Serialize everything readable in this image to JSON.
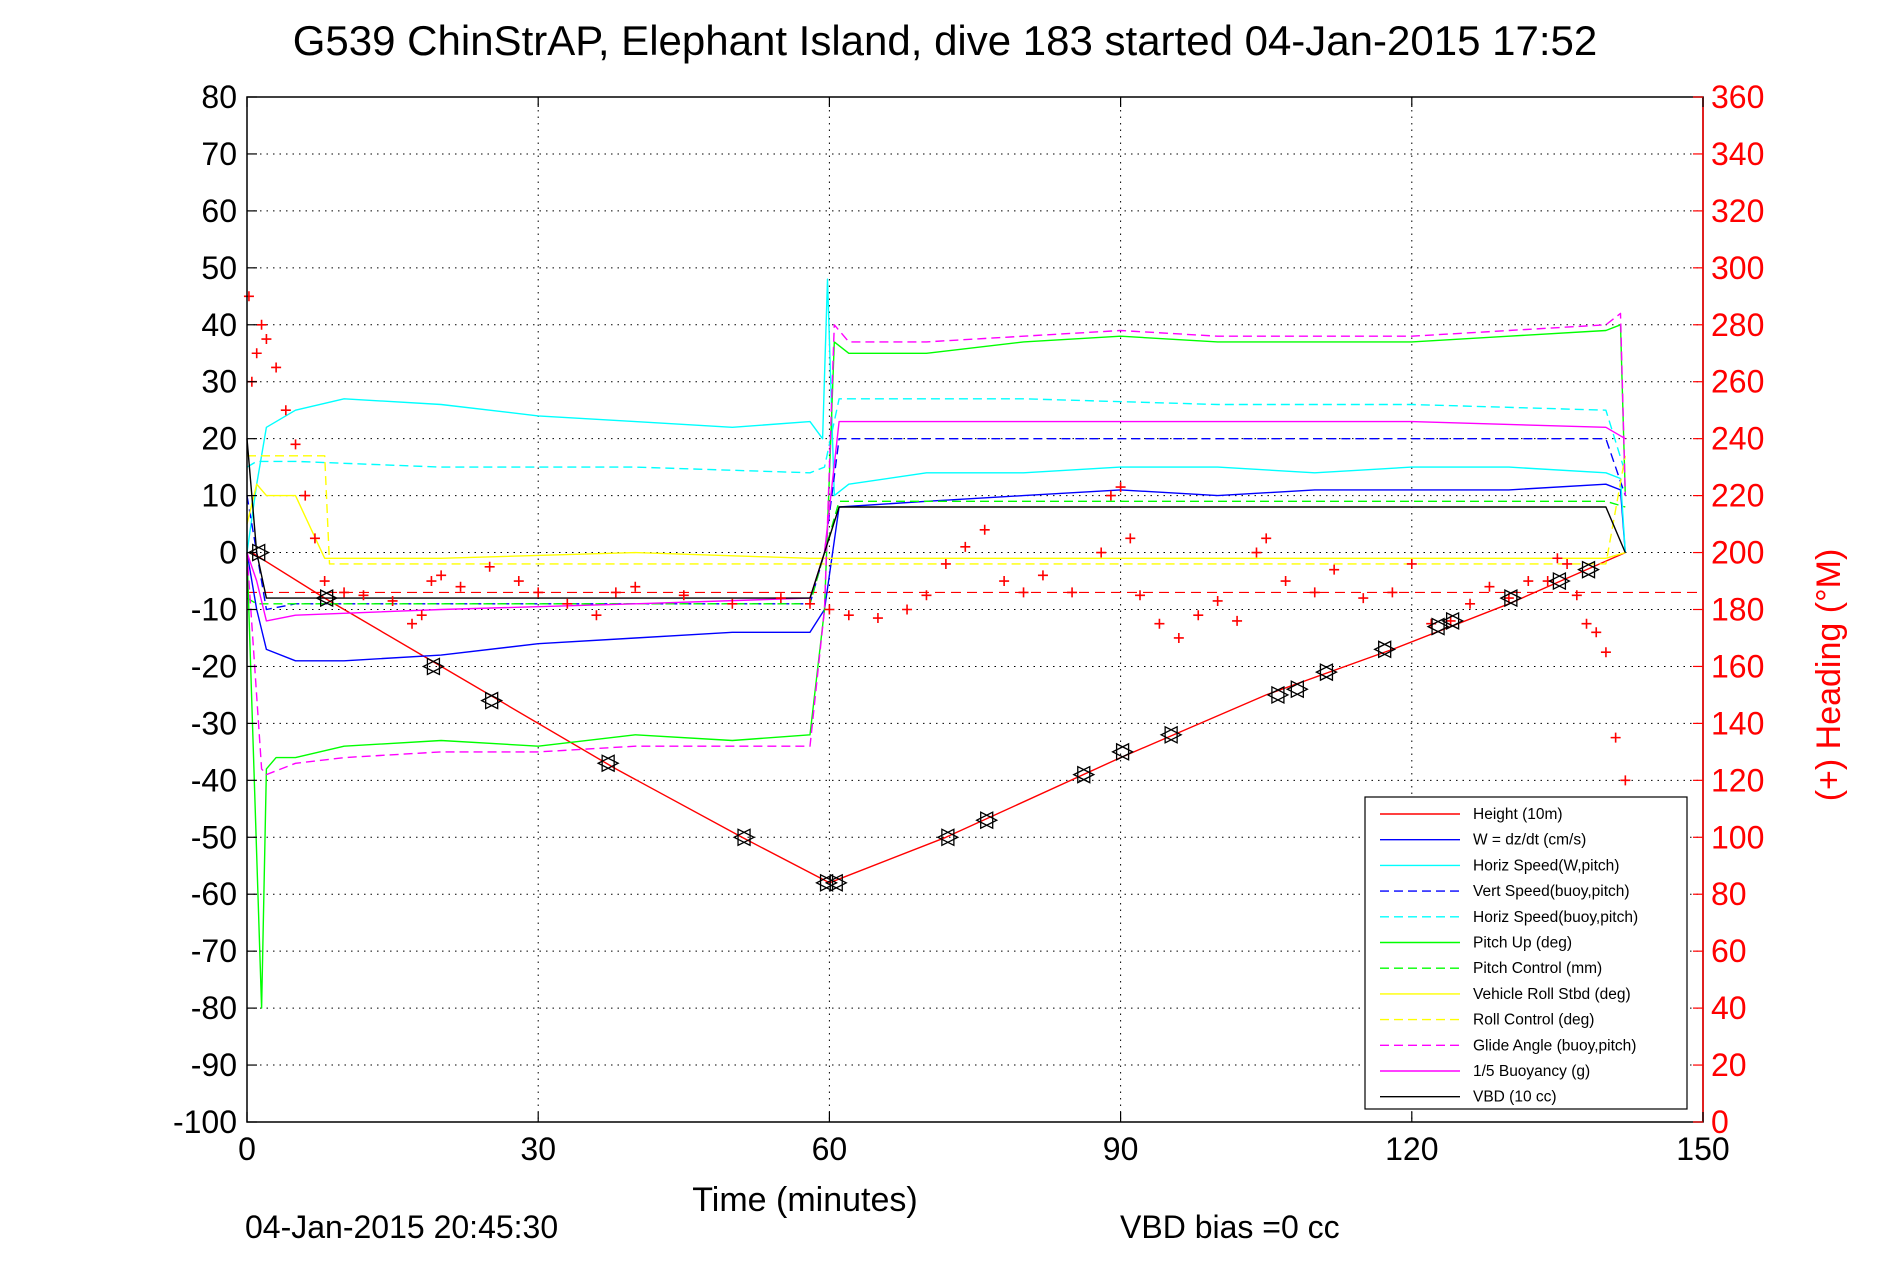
{
  "chart_data": {
    "type": "line",
    "title": "G539 ChinStrAP, Elephant Island, dive 183 started 04-Jan-2015 17:52",
    "xlabel": "Time (minutes)",
    "ylabel": "",
    "ylabel_right": "(+) Heading (°M)",
    "xlim": [
      0,
      150
    ],
    "ylim": [
      -100,
      80
    ],
    "ylim_right": [
      0,
      360
    ],
    "x_ticks": [
      "0",
      "30",
      "60",
      "90",
      "120",
      "150"
    ],
    "y_ticks": [
      "80",
      "70",
      "60",
      "50",
      "40",
      "30",
      "20",
      "10",
      "0",
      "-10",
      "-20",
      "-30",
      "-40",
      "-50",
      "-60",
      "-70",
      "-80",
      "-90",
      "-100"
    ],
    "y_ticks_right": [
      "360",
      "340",
      "320",
      "300",
      "280",
      "260",
      "240",
      "220",
      "200",
      "180",
      "160",
      "140",
      "120",
      "100",
      "80",
      "60",
      "40",
      "20",
      "0"
    ],
    "grid": true,
    "legend_position": "bottom-right",
    "colors": {
      "red": "#ff0000",
      "blue": "#0000ff",
      "cyan": "#00ffff",
      "green": "#00ff00",
      "yellow": "#ffff00",
      "magenta": "#ff00ff",
      "black": "#000000"
    },
    "series": [
      {
        "name": "Height (10m)",
        "color": "#ff0000",
        "dash": false,
        "x": [
          0.5,
          8,
          20,
          38,
          51,
          60,
          72,
          90,
          105,
          118,
          130,
          142
        ],
        "y": [
          0,
          -8,
          -20,
          -38,
          -50,
          -58,
          -50,
          -36,
          -25,
          -17,
          -9,
          0
        ]
      },
      {
        "name": "W = dz/dt (cm/s)",
        "color": "#0000ff",
        "dash": false,
        "x": [
          0,
          1,
          2,
          5,
          10,
          20,
          30,
          40,
          50,
          58,
          59.5,
          61,
          70,
          80,
          90,
          100,
          110,
          120,
          130,
          140,
          141.5,
          142
        ],
        "y": [
          0,
          -10,
          -17,
          -19,
          -19,
          -18,
          -16,
          -15,
          -14,
          -14,
          -10,
          8,
          9,
          10,
          11,
          10,
          11,
          11,
          11,
          12,
          11,
          0
        ]
      },
      {
        "name": "Horiz Speed(W,pitch)",
        "color": "#00ffff",
        "dash": false,
        "x": [
          0,
          1,
          2,
          5,
          10,
          20,
          30,
          40,
          50,
          58,
          59.3,
          59.8,
          60.5,
          62,
          70,
          80,
          90,
          100,
          110,
          120,
          130,
          140,
          141.5,
          142
        ],
        "y": [
          0,
          12,
          22,
          25,
          27,
          26,
          24,
          23,
          22,
          23,
          20,
          48,
          10,
          12,
          14,
          14,
          15,
          15,
          14,
          15,
          15,
          14,
          13,
          0
        ]
      },
      {
        "name": "Vert Speed(buoy,pitch)",
        "color": "#0000ff",
        "dash": true,
        "x": [
          0,
          1,
          2,
          5,
          20,
          40,
          58,
          59.5,
          61,
          80,
          100,
          120,
          140,
          142
        ],
        "y": [
          10,
          0,
          -10,
          -9,
          -9,
          -9,
          -9,
          0,
          20,
          20,
          20,
          20,
          20,
          10
        ]
      },
      {
        "name": "Horiz Speed(buoy,pitch)",
        "color": "#00ffff",
        "dash": true,
        "x": [
          0,
          1,
          2,
          5,
          20,
          40,
          58,
          59.5,
          61,
          80,
          100,
          120,
          140,
          142
        ],
        "y": [
          15,
          16,
          16,
          16,
          15,
          15,
          14,
          15,
          27,
          27,
          26,
          26,
          25,
          14
        ]
      },
      {
        "name": "Pitch Up (deg)",
        "color": "#00ff00",
        "dash": false,
        "x": [
          0,
          1.5,
          2,
          3,
          5,
          10,
          20,
          30,
          40,
          50,
          58,
          59.5,
          60.5,
          62,
          70,
          80,
          90,
          100,
          110,
          120,
          130,
          140,
          141.5,
          142
        ],
        "y": [
          0,
          -80,
          -38,
          -36,
          -36,
          -34,
          -33,
          -34,
          -32,
          -33,
          -32,
          -10,
          37,
          35,
          35,
          37,
          38,
          37,
          37,
          37,
          38,
          39,
          40,
          10
        ]
      },
      {
        "name": "Pitch Control (mm)",
        "color": "#00ff00",
        "dash": true,
        "x": [
          0,
          1,
          2,
          20,
          40,
          58,
          59.5,
          61,
          80,
          100,
          120,
          140,
          142
        ],
        "y": [
          -8,
          -9,
          -9,
          -9,
          -9,
          -9,
          0,
          9,
          9,
          9,
          9,
          9,
          8
        ]
      },
      {
        "name": "Vehicle Roll Stbd (deg)",
        "color": "#ffff00",
        "dash": false,
        "x": [
          0,
          1,
          2,
          5,
          8,
          20,
          40,
          58,
          60,
          80,
          100,
          120,
          140,
          142
        ],
        "y": [
          5,
          12,
          10,
          10,
          -1,
          -1,
          0,
          -1,
          -1,
          -1,
          -1,
          -1,
          -1,
          0
        ]
      },
      {
        "name": "Roll Control (deg)",
        "color": "#ffff00",
        "dash": true,
        "x": [
          0,
          1,
          2,
          8,
          8.5,
          40,
          60,
          80,
          100,
          120,
          140,
          142
        ],
        "y": [
          17,
          17,
          17,
          17,
          -2,
          -2,
          -2,
          -2,
          -2,
          -2,
          -2,
          17
        ]
      },
      {
        "name": "Glide Angle (buoy,pitch)",
        "color": "#ff00ff",
        "dash": true,
        "x": [
          0,
          1.5,
          2,
          5,
          10,
          20,
          30,
          40,
          50,
          58,
          59.5,
          60.5,
          62,
          70,
          80,
          90,
          100,
          110,
          120,
          130,
          140,
          141.5,
          142
        ],
        "y": [
          0,
          -38,
          -39,
          -37,
          -36,
          -35,
          -35,
          -34,
          -34,
          -34,
          -10,
          40,
          37,
          37,
          38,
          39,
          38,
          38,
          38,
          39,
          40,
          42,
          10
        ]
      },
      {
        "name": "1/5 Buoyancy (g)",
        "color": "#ff00ff",
        "dash": false,
        "x": [
          0,
          1,
          2,
          5,
          20,
          40,
          58,
          59.5,
          61,
          80,
          100,
          120,
          140,
          142
        ],
        "y": [
          0,
          -5,
          -12,
          -11,
          -10,
          -9,
          -8,
          0,
          23,
          23,
          23,
          23,
          22,
          20
        ]
      },
      {
        "name": "VBD (10 cc)",
        "color": "#000000",
        "dash": false,
        "x": [
          0,
          1,
          2,
          5,
          20,
          40,
          58,
          59.5,
          61,
          80,
          100,
          120,
          140,
          142
        ],
        "y": [
          20,
          0,
          -8,
          -8,
          -8,
          -8,
          -8,
          0,
          8,
          8,
          8,
          8,
          8,
          0
        ]
      }
    ],
    "heading_series": {
      "axis": "right",
      "marker": "+",
      "color": "#ff0000",
      "x": [
        0.2,
        0.5,
        1,
        1.5,
        2,
        3,
        4,
        5,
        6,
        7,
        8,
        10,
        12,
        15,
        17,
        18,
        19,
        20,
        22,
        25,
        28,
        30,
        33,
        36,
        38,
        40,
        45,
        50,
        55,
        58,
        60,
        62,
        65,
        68,
        70,
        72,
        74,
        76,
        78,
        80,
        82,
        85,
        88,
        89,
        90,
        91,
        92,
        94,
        96,
        98,
        100,
        102,
        104,
        105,
        107,
        110,
        112,
        115,
        118,
        120,
        122,
        124,
        126,
        128,
        130,
        132,
        134,
        135,
        136,
        137,
        138,
        139,
        140,
        141,
        142
      ],
      "y": [
        290,
        260,
        270,
        280,
        275,
        265,
        250,
        238,
        220,
        205,
        190,
        186,
        185,
        183,
        175,
        178,
        190,
        192,
        188,
        195,
        190,
        186,
        182,
        178,
        186,
        188,
        185,
        182,
        184,
        182,
        180,
        178,
        177,
        180,
        185,
        196,
        202,
        208,
        190,
        186,
        192,
        186,
        200,
        220,
        223,
        205,
        185,
        175,
        170,
        178,
        183,
        176,
        200,
        205,
        190,
        186,
        194,
        184,
        186,
        196,
        175,
        176,
        182,
        188,
        184,
        190,
        190,
        198,
        196,
        185,
        175,
        172,
        165,
        135,
        120
      ]
    },
    "reference_line": {
      "name": "",
      "color": "#ff0000",
      "dash": true,
      "y": -7
    },
    "markers": {
      "symbol": "triangle",
      "color": "#000000",
      "x": [
        1,
        8,
        19,
        25,
        37,
        51,
        59.5,
        60.5,
        72,
        76,
        86,
        90,
        95,
        106,
        108,
        111,
        117,
        122.5,
        124,
        130,
        135,
        138
      ],
      "y": [
        0,
        -8,
        -20,
        -26,
        -37,
        -50,
        -58,
        -58,
        -50,
        -47,
        -39,
        -35,
        -32,
        -25,
        -24,
        -21,
        -17,
        -13,
        -12,
        -8,
        -5,
        -3
      ]
    }
  },
  "footer": {
    "timestamp": "04-Jan-2015 20:45:30",
    "vbd_bias": "VBD bias =0 cc"
  }
}
